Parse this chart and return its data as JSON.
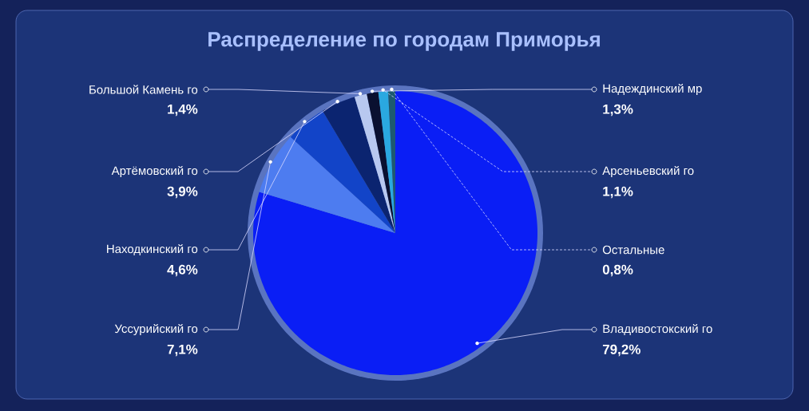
{
  "chart_data": {
    "type": "pie",
    "title": "Распределение по городам Приморья",
    "categories": [
      "Владивостокский го",
      "Уссурийский го",
      "Находкинский го",
      "Артёмовский го",
      "Большой Камень го",
      "Надеждинский мр",
      "Арсеньевский го",
      "Остальные"
    ],
    "values": [
      79.2,
      7.1,
      4.6,
      3.9,
      1.4,
      1.3,
      1.1,
      0.8
    ],
    "value_labels": [
      "79,2%",
      "7,1%",
      "4,6%",
      "3,9%",
      "1,4%",
      "1,3%",
      "1,1%",
      "0,8%"
    ],
    "colors": [
      "#0a1ef5",
      "#4d7cf0",
      "#1244c8",
      "#0b2470",
      "#b8c8f0",
      "#0a1030",
      "#2aa8e0",
      "#1d5a70"
    ]
  }
}
